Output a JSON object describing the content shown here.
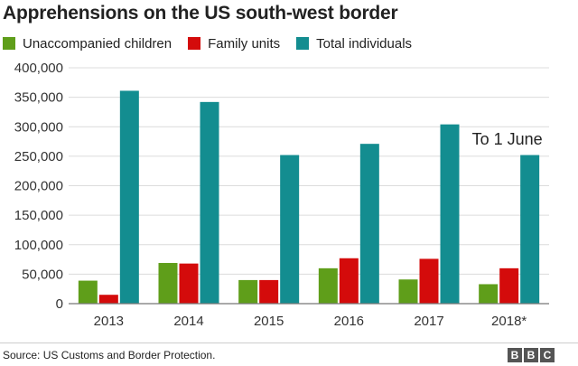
{
  "chart_data": {
    "type": "bar",
    "title": "Apprehensions on the US south-west border",
    "categories": [
      "2013",
      "2014",
      "2015",
      "2016",
      "2017",
      "2018*"
    ],
    "series": [
      {
        "name": "Unaccompanied children",
        "color": "#5f9e1a",
        "values": [
          39000,
          69000,
          40000,
          60000,
          41000,
          33000
        ]
      },
      {
        "name": "Family units",
        "color": "#d40b0b",
        "values": [
          15000,
          68000,
          40000,
          77000,
          76000,
          60000
        ]
      },
      {
        "name": "Total individuals",
        "color": "#138d90",
        "values": [
          361000,
          342000,
          252000,
          271000,
          304000,
          252000
        ]
      }
    ],
    "ylim": [
      0,
      400000
    ],
    "yticks": [
      "0",
      "50,000",
      "100,000",
      "150,000",
      "200,000",
      "250,000",
      "300,000",
      "350,000",
      "400,000"
    ],
    "annotation": "To 1 June",
    "grid": true,
    "legend_position": "top-left"
  },
  "footer": {
    "source": "Source: US Customs and Border Protection.",
    "logo": [
      "B",
      "B",
      "C"
    ]
  }
}
